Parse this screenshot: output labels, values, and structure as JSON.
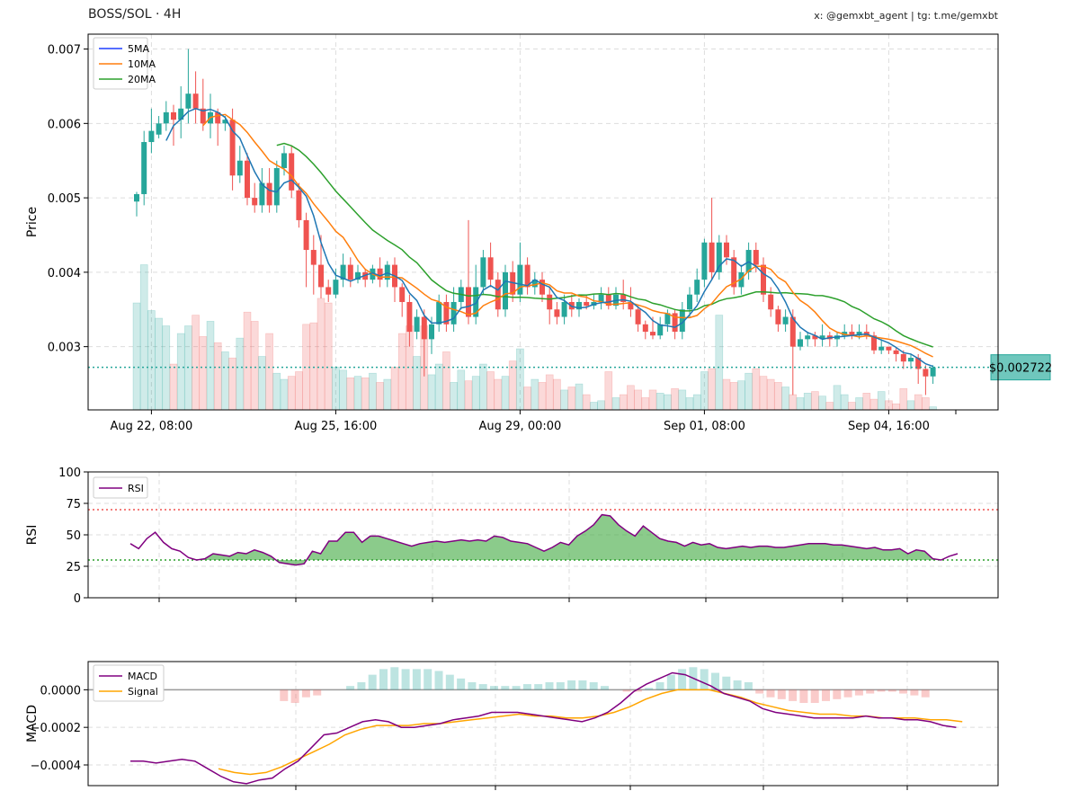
{
  "header": {
    "title": "BOSS/SOL · 4H",
    "credit": "x: @gemxbt_agent | tg: t.me/gemxbt"
  },
  "colors": {
    "up": "#26a69a",
    "down": "#ef5350",
    "ma5": "#1f77b4",
    "ma5_legend": "#1f3fff",
    "ma10": "#ff7f0e",
    "ma20": "#2ca02c",
    "rsi": "#800080",
    "macd": "#800080",
    "signal": "#ffa500",
    "price_tag": "#26a69a"
  },
  "chart_data": [
    {
      "id": "price",
      "type": "candlestick",
      "ylabel": "Price",
      "ylim": [
        0.00215,
        0.0072
      ],
      "yticks": [
        0.003,
        0.004,
        0.005,
        0.006,
        0.007
      ],
      "ytick_labels": [
        "0.003",
        "0.004",
        "0.005",
        "0.006",
        "0.007"
      ],
      "xtick_positions": [
        2,
        27,
        52,
        77,
        102
      ],
      "xtick_labels": [
        "Aug 22, 08:00",
        "Aug 25, 16:00",
        "Aug 29, 00:00",
        "Sep 01, 08:00",
        "Sep 04, 16:00"
      ],
      "legend": [
        "5MA",
        "10MA",
        "20MA"
      ],
      "legend_position": "top-left",
      "grid": true,
      "current_price": 0.002722,
      "current_price_label": "$0.002722",
      "ohlc": [
        [
          0.00495,
          0.00505,
          0.00475,
          0.00508
        ],
        [
          0.00505,
          0.00575,
          0.0049,
          0.0059
        ],
        [
          0.00575,
          0.0059,
          0.0056,
          0.0062
        ],
        [
          0.00585,
          0.006,
          0.0058,
          0.0061
        ],
        [
          0.006,
          0.00615,
          0.0059,
          0.0063
        ],
        [
          0.00615,
          0.00605,
          0.0057,
          0.00625
        ],
        [
          0.00605,
          0.0062,
          0.0058,
          0.0065
        ],
        [
          0.0062,
          0.0064,
          0.006,
          0.007
        ],
        [
          0.0064,
          0.0062,
          0.006,
          0.0067
        ],
        [
          0.0062,
          0.006,
          0.0059,
          0.0066
        ],
        [
          0.006,
          0.00615,
          0.0058,
          0.0064
        ],
        [
          0.00615,
          0.006,
          0.0057,
          0.0062
        ],
        [
          0.006,
          0.00605,
          0.0059,
          0.0061
        ],
        [
          0.00605,
          0.0053,
          0.0051,
          0.0062
        ],
        [
          0.0053,
          0.0055,
          0.0052,
          0.0057
        ],
        [
          0.0055,
          0.005,
          0.0049,
          0.0056
        ],
        [
          0.005,
          0.0049,
          0.0048,
          0.0052
        ],
        [
          0.0049,
          0.0052,
          0.0048,
          0.0054
        ],
        [
          0.0052,
          0.0049,
          0.0048,
          0.0054
        ],
        [
          0.0049,
          0.0054,
          0.0048,
          0.0055
        ],
        [
          0.0054,
          0.0056,
          0.0053,
          0.0057
        ],
        [
          0.0056,
          0.0051,
          0.005,
          0.0057
        ],
        [
          0.0051,
          0.0047,
          0.0046,
          0.0052
        ],
        [
          0.0047,
          0.0043,
          0.0038,
          0.0048
        ],
        [
          0.0043,
          0.0041,
          0.0037,
          0.0045
        ],
        [
          0.0041,
          0.0038,
          0.00365,
          0.0045
        ],
        [
          0.0038,
          0.0037,
          0.0036,
          0.0039
        ],
        [
          0.0037,
          0.0039,
          0.00365,
          0.00405
        ],
        [
          0.0039,
          0.0041,
          0.0038,
          0.00425
        ],
        [
          0.0041,
          0.0039,
          0.0038,
          0.0042
        ],
        [
          0.0039,
          0.004,
          0.00385,
          0.0041
        ],
        [
          0.004,
          0.0039,
          0.0038,
          0.00405
        ],
        [
          0.0039,
          0.00405,
          0.00385,
          0.0041
        ],
        [
          0.00405,
          0.0039,
          0.0038,
          0.0042
        ],
        [
          0.0039,
          0.0041,
          0.0038,
          0.00415
        ],
        [
          0.0041,
          0.0038,
          0.0036,
          0.0042
        ],
        [
          0.0038,
          0.0036,
          0.0034,
          0.00385
        ],
        [
          0.0036,
          0.0032,
          0.003,
          0.0037
        ],
        [
          0.0032,
          0.0034,
          0.0031,
          0.0035
        ],
        [
          0.0034,
          0.0031,
          0.0026,
          0.0035
        ],
        [
          0.0031,
          0.0033,
          0.0029,
          0.0034
        ],
        [
          0.0033,
          0.0036,
          0.0032,
          0.0037
        ],
        [
          0.0036,
          0.0033,
          0.0032,
          0.0037
        ],
        [
          0.0033,
          0.0036,
          0.0032,
          0.0038
        ],
        [
          0.0036,
          0.0038,
          0.0035,
          0.0039
        ],
        [
          0.0038,
          0.0034,
          0.0033,
          0.0047
        ],
        [
          0.0034,
          0.0038,
          0.0033,
          0.0041
        ],
        [
          0.0038,
          0.0042,
          0.0037,
          0.0043
        ],
        [
          0.0042,
          0.0039,
          0.0038,
          0.0044
        ],
        [
          0.0039,
          0.0035,
          0.0034,
          0.004
        ],
        [
          0.0035,
          0.004,
          0.0034,
          0.0041
        ],
        [
          0.004,
          0.0037,
          0.0036,
          0.00415
        ],
        [
          0.0037,
          0.0041,
          0.0036,
          0.0044
        ],
        [
          0.0041,
          0.0038,
          0.0037,
          0.0042
        ],
        [
          0.0038,
          0.0039,
          0.0037,
          0.004
        ],
        [
          0.0039,
          0.0037,
          0.0036,
          0.004
        ],
        [
          0.0037,
          0.0035,
          0.0033,
          0.0038
        ],
        [
          0.0035,
          0.0034,
          0.0033,
          0.0036
        ],
        [
          0.0034,
          0.0036,
          0.0033,
          0.0037
        ],
        [
          0.0036,
          0.0035,
          0.0034,
          0.0037
        ],
        [
          0.0035,
          0.0036,
          0.0034,
          0.00365
        ],
        [
          0.0036,
          0.00355,
          0.0035,
          0.0037
        ],
        [
          0.00355,
          0.0036,
          0.0035,
          0.0037
        ],
        [
          0.0036,
          0.0037,
          0.0035,
          0.0038
        ],
        [
          0.0037,
          0.00355,
          0.0035,
          0.0038
        ],
        [
          0.00355,
          0.0037,
          0.0035,
          0.0038
        ],
        [
          0.0037,
          0.0036,
          0.0035,
          0.0039
        ],
        [
          0.0036,
          0.0035,
          0.0034,
          0.0038
        ],
        [
          0.0035,
          0.0033,
          0.0032,
          0.00355
        ],
        [
          0.0033,
          0.0032,
          0.0031,
          0.00335
        ],
        [
          0.0032,
          0.00315,
          0.0031,
          0.0034
        ],
        [
          0.00315,
          0.0033,
          0.0031,
          0.0034
        ],
        [
          0.0033,
          0.00345,
          0.0032,
          0.0035
        ],
        [
          0.00345,
          0.0032,
          0.0031,
          0.0035
        ],
        [
          0.0032,
          0.0035,
          0.0031,
          0.0036
        ],
        [
          0.0035,
          0.0037,
          0.0034,
          0.0038
        ],
        [
          0.0037,
          0.0039,
          0.0036,
          0.00405
        ],
        [
          0.0039,
          0.0044,
          0.0038,
          0.00445
        ],
        [
          0.0044,
          0.004,
          0.0039,
          0.005
        ],
        [
          0.004,
          0.0044,
          0.0039,
          0.0045
        ],
        [
          0.0044,
          0.0042,
          0.0041,
          0.0045
        ],
        [
          0.0042,
          0.0038,
          0.0037,
          0.0043
        ],
        [
          0.0038,
          0.004,
          0.0037,
          0.0041
        ],
        [
          0.004,
          0.0043,
          0.0039,
          0.0044
        ],
        [
          0.0043,
          0.0041,
          0.004,
          0.0044
        ],
        [
          0.0041,
          0.0037,
          0.0036,
          0.0042
        ],
        [
          0.0037,
          0.0035,
          0.0034,
          0.0038
        ],
        [
          0.0035,
          0.0033,
          0.0032,
          0.00355
        ],
        [
          0.0033,
          0.0034,
          0.0032,
          0.0035
        ],
        [
          0.0034,
          0.003,
          0.00235,
          0.0035
        ],
        [
          0.003,
          0.0031,
          0.00295,
          0.0032
        ],
        [
          0.0031,
          0.00315,
          0.003,
          0.0032
        ],
        [
          0.00315,
          0.0031,
          0.003,
          0.0032
        ],
        [
          0.0031,
          0.00315,
          0.003,
          0.0033
        ],
        [
          0.00315,
          0.0031,
          0.003,
          0.0032
        ],
        [
          0.0031,
          0.00315,
          0.003,
          0.0032
        ],
        [
          0.00315,
          0.0032,
          0.0031,
          0.0033
        ],
        [
          0.0032,
          0.00315,
          0.0031,
          0.0033
        ],
        [
          0.00315,
          0.0032,
          0.0031,
          0.0033
        ],
        [
          0.0032,
          0.00315,
          0.0031,
          0.0033
        ],
        [
          0.00315,
          0.00295,
          0.0029,
          0.0032
        ],
        [
          0.00295,
          0.003,
          0.0029,
          0.0031
        ],
        [
          0.003,
          0.00295,
          0.0029,
          0.003
        ],
        [
          0.00295,
          0.0029,
          0.0028,
          0.003
        ],
        [
          0.0029,
          0.0028,
          0.0027,
          0.00295
        ],
        [
          0.0028,
          0.00285,
          0.0027,
          0.0029
        ],
        [
          0.00285,
          0.0027,
          0.0025,
          0.0029
        ],
        [
          0.0027,
          0.0026,
          0.00235,
          0.00275
        ],
        [
          0.0026,
          0.002722,
          0.0025,
          0.00275
        ]
      ],
      "volume": [
        0.7,
        0.95,
        0.65,
        0.6,
        0.55,
        0.3,
        0.5,
        0.55,
        0.62,
        0.48,
        0.58,
        0.44,
        0.38,
        0.34,
        0.47,
        0.64,
        0.58,
        0.35,
        0.5,
        0.24,
        0.2,
        0.22,
        0.25,
        0.56,
        0.57,
        0.73,
        0.7,
        0.28,
        0.26,
        0.21,
        0.22,
        0.21,
        0.24,
        0.18,
        0.2,
        0.28,
        0.5,
        0.55,
        0.35,
        0.55,
        0.23,
        0.3,
        0.38,
        0.18,
        0.26,
        0.19,
        0.22,
        0.3,
        0.25,
        0.2,
        0.22,
        0.32,
        0.4,
        0.15,
        0.2,
        0.18,
        0.23,
        0.2,
        0.13,
        0.15,
        0.17,
        0.1,
        0.05,
        0.06,
        0.25,
        0.08,
        0.1,
        0.16,
        0.13,
        0.08,
        0.13,
        0.11,
        0.1,
        0.14,
        0.13,
        0.08,
        0.1,
        0.25,
        0.27,
        0.62,
        0.2,
        0.18,
        0.19,
        0.24,
        0.27,
        0.22,
        0.2,
        0.18,
        0.15,
        0.1,
        0.08,
        0.11,
        0.12,
        0.09,
        0.05,
        0.16,
        0.1,
        0.05,
        0.08,
        0.11,
        0.07,
        0.12,
        0.06,
        0.04,
        0.14,
        0.06,
        0.1,
        0.08,
        0.02
      ]
    },
    {
      "id": "rsi",
      "type": "line",
      "ylabel": "RSI",
      "ylim": [
        0,
        100
      ],
      "yticks": [
        0,
        25,
        50,
        75,
        100
      ],
      "ytick_labels": [
        "0",
        "25",
        "50",
        "75",
        "100"
      ],
      "overbought": 70,
      "oversold": 30,
      "legend": [
        "RSI"
      ],
      "legend_position": "top-left",
      "grid": true,
      "values": [
        43,
        39,
        47,
        52,
        44,
        39,
        37,
        32,
        30,
        31,
        35,
        34,
        33,
        36,
        35,
        38,
        36,
        33,
        28,
        27,
        26,
        27,
        37,
        35,
        45,
        45,
        52,
        52,
        44,
        49,
        49,
        47,
        45,
        43,
        41,
        43,
        44,
        45,
        44,
        45,
        46,
        45,
        46,
        45,
        49,
        48,
        45,
        44,
        43,
        40,
        37,
        40,
        44,
        42,
        49,
        53,
        58,
        66,
        65,
        58,
        53,
        49,
        57,
        52,
        47,
        45,
        44,
        41,
        44,
        42,
        43,
        40,
        39,
        40,
        41,
        40,
        41,
        41,
        40,
        40,
        41,
        42,
        43,
        43,
        43,
        42,
        42,
        41,
        40,
        39,
        40,
        38,
        38,
        39,
        35,
        38,
        37,
        31,
        30,
        33,
        35
      ]
    },
    {
      "id": "macd",
      "type": "line",
      "ylabel": "MACD",
      "ylim": [
        -0.00051,
        0.00015
      ],
      "yticks": [
        -0.0004,
        -0.0002,
        0.0
      ],
      "ytick_labels": [
        "−0.0004",
        "−0.0002",
        "0.0000"
      ],
      "legend": [
        "MACD",
        "Signal"
      ],
      "legend_position": "top-left",
      "grid": true,
      "macd": [
        -0.00038,
        -0.00038,
        -0.00039,
        -0.00038,
        -0.00037,
        -0.00038,
        -0.00042,
        -0.00046,
        -0.00049,
        -0.0005,
        -0.00048,
        -0.00047,
        -0.00042,
        -0.00038,
        -0.00031,
        -0.00024,
        -0.00023,
        -0.0002,
        -0.00017,
        -0.00016,
        -0.00017,
        -0.0002,
        -0.0002,
        -0.00019,
        -0.00018,
        -0.00016,
        -0.00015,
        -0.00014,
        -0.00012,
        -0.00012,
        -0.00012,
        -0.00013,
        -0.00014,
        -0.00015,
        -0.00016,
        -0.00017,
        -0.00015,
        -0.00012,
        -7e-05,
        -1e-05,
        3e-05,
        6e-05,
        9e-05,
        8e-05,
        5e-05,
        2e-05,
        -2e-05,
        -4e-05,
        -6e-05,
        -0.0001,
        -0.00012,
        -0.00013,
        -0.00014,
        -0.00015,
        -0.00015,
        -0.00015,
        -0.00015,
        -0.00014,
        -0.00015,
        -0.00015,
        -0.00016,
        -0.00016,
        -0.00017,
        -0.00019,
        -0.0002
      ],
      "signal": [
        -0.00042,
        -0.00044,
        -0.00045,
        -0.00044,
        -0.00041,
        -0.00037,
        -0.00033,
        -0.00029,
        -0.00024,
        -0.00021,
        -0.00019,
        -0.00019,
        -0.00019,
        -0.00018,
        -0.00018,
        -0.00017,
        -0.00016,
        -0.00015,
        -0.00014,
        -0.00013,
        -0.00014,
        -0.00014,
        -0.00015,
        -0.00015,
        -0.00014,
        -0.00012,
        -9e-05,
        -5e-05,
        -2e-05,
        0.0,
        0.0,
        0.0,
        -2e-05,
        -4e-05,
        -7e-05,
        -9e-05,
        -0.00011,
        -0.00012,
        -0.00013,
        -0.00013,
        -0.00014,
        -0.00014,
        -0.00015,
        -0.00015,
        -0.00015,
        -0.00016,
        -0.00016,
        -0.00017
      ],
      "signal_start": 17,
      "histogram": [
        0,
        0,
        0,
        0,
        0,
        0,
        -6e-05,
        -7e-05,
        -4e-05,
        -3e-05,
        0,
        0,
        2e-05,
        4e-05,
        8e-05,
        0.00011,
        0.00012,
        0.00011,
        0.00011,
        0.00011,
        0.0001,
        8e-05,
        6e-05,
        4e-05,
        3e-05,
        2e-05,
        2e-05,
        2e-05,
        3e-05,
        3e-05,
        4e-05,
        4e-05,
        5e-05,
        5e-05,
        4e-05,
        2e-05,
        0.0,
        -1e-05,
        -1e-05,
        1e-05,
        4e-05,
        8e-05,
        0.00011,
        0.00012,
        0.00011,
        9e-05,
        7e-05,
        5e-05,
        4e-05,
        -2e-05,
        -4e-05,
        -5e-05,
        -6e-05,
        -7e-05,
        -7e-05,
        -6e-05,
        -5e-05,
        -4e-05,
        -3e-05,
        -2e-05,
        -1e-05,
        -1e-05,
        -2e-05,
        -3e-05,
        -4e-05
      ]
    }
  ]
}
